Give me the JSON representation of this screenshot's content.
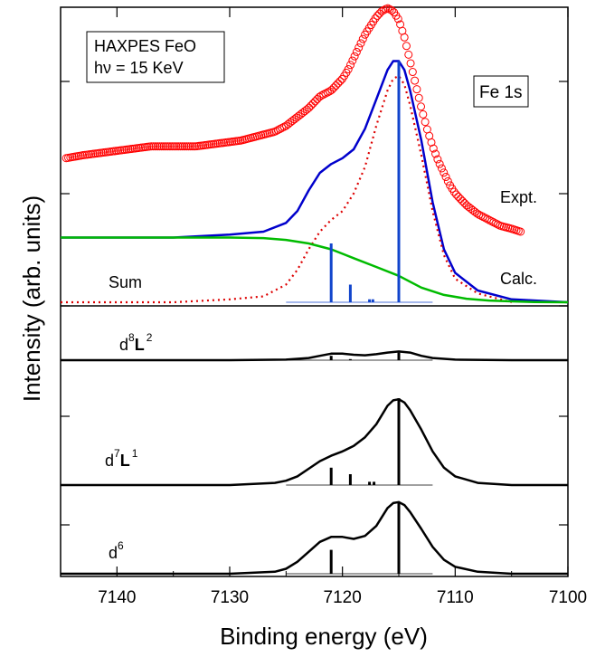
{
  "chart_data": {
    "type": "line",
    "xlabel": "Binding energy (eV)",
    "ylabel": "Intensity (arb. units)",
    "xlim": [
      7145,
      7100
    ],
    "x_reversed": true,
    "x_ticks": [
      7140,
      7130,
      7120,
      7110,
      7100
    ],
    "grid": false,
    "annotations": {
      "box_left": [
        "HAXPES FeO",
        "hν = 15 KeV"
      ],
      "box_right": "Fe 1s",
      "expt": "Expt.",
      "calc": "Calc.",
      "sum": "Sum",
      "d8_main": "d",
      "d8_sup": "8",
      "d8_L": "L",
      "d8_L_sup": "2",
      "d7_main": "d",
      "d7_sup": "7",
      "d7_L": "L",
      "d7_L_sup": "1",
      "d6_main": "d",
      "d6_sup": "6"
    },
    "colors": {
      "expt": "#ff0000",
      "sum_total": "#0000cc",
      "dotted": "#dd0000",
      "background": "#00bb00",
      "sticks_sum": "#1144cc",
      "panels": "#000000"
    },
    "panels": [
      {
        "name": "Sum",
        "yrange": [
          0,
          1.0
        ],
        "series": [
          {
            "name": "Expt.",
            "style": "markers",
            "x": [
              7144.5,
              7143,
              7141,
              7139,
              7137,
              7135,
              7133,
              7131,
              7129,
              7127,
              7126,
              7125,
              7124,
              7123,
              7122,
              7121,
              7120.5,
              7120,
              7119.5,
              7119,
              7118.5,
              7118,
              7117.5,
              7117,
              7116.5,
              7116,
              7115.5,
              7115,
              7114.5,
              7114,
              7113.5,
              7113,
              7112.5,
              7112,
              7111.5,
              7111,
              7110.5,
              7110,
              7109,
              7108,
              7107,
              7106,
              7105,
              7104.2
            ],
            "y": [
              0.49,
              0.5,
              0.51,
              0.52,
              0.53,
              0.53,
              0.53,
              0.54,
              0.55,
              0.57,
              0.58,
              0.6,
              0.63,
              0.66,
              0.7,
              0.72,
              0.74,
              0.76,
              0.79,
              0.83,
              0.87,
              0.91,
              0.94,
              0.97,
              0.99,
              1.0,
              0.99,
              0.96,
              0.9,
              0.82,
              0.74,
              0.66,
              0.59,
              0.53,
              0.48,
              0.44,
              0.4,
              0.37,
              0.33,
              0.3,
              0.28,
              0.26,
              0.25,
              0.24
            ]
          },
          {
            "name": "Sum total",
            "style": "line",
            "x": [
              7145,
              7135,
              7130,
              7127,
              7125,
              7124,
              7123,
              7122,
              7121,
              7120,
              7119,
              7118,
              7117,
              7116,
              7115.5,
              7115,
              7114.5,
              7114,
              7113,
              7112,
              7111,
              7110,
              7108,
              7105,
              7100
            ],
            "y": [
              0.22,
              0.22,
              0.23,
              0.24,
              0.27,
              0.31,
              0.38,
              0.44,
              0.47,
              0.49,
              0.52,
              0.59,
              0.69,
              0.79,
              0.82,
              0.82,
              0.79,
              0.72,
              0.55,
              0.34,
              0.18,
              0.1,
              0.04,
              0.01,
              0.0
            ]
          },
          {
            "name": "dotted",
            "style": "dotted",
            "x": [
              7145,
              7135,
              7130,
              7127,
              7125,
              7124,
              7123,
              7122,
              7121,
              7120,
              7119,
              7118,
              7117,
              7116,
              7115.5,
              7115,
              7114.5,
              7114,
              7113,
              7112,
              7111,
              7110,
              7108,
              7105
            ],
            "y": [
              0.0,
              0.0,
              0.01,
              0.02,
              0.06,
              0.11,
              0.18,
              0.24,
              0.28,
              0.31,
              0.37,
              0.46,
              0.6,
              0.72,
              0.76,
              0.77,
              0.74,
              0.67,
              0.5,
              0.31,
              0.16,
              0.08,
              0.03,
              0.0
            ]
          },
          {
            "name": "background",
            "style": "line",
            "x": [
              7145,
              7135,
              7130,
              7127,
              7125,
              7123,
              7121,
              7119,
              7117,
              7115,
              7113,
              7111,
              7109,
              7107,
              7105,
              7103,
              7100
            ],
            "y": [
              0.22,
              0.22,
              0.22,
              0.218,
              0.212,
              0.2,
              0.18,
              0.15,
              0.12,
              0.09,
              0.05,
              0.025,
              0.012,
              0.006,
              0.003,
              0.001,
              0.0
            ]
          },
          {
            "name": "sticks",
            "style": "sticks",
            "x": [
              7121,
              7119.3,
              7117.6,
              7117.3,
              7115
            ],
            "y": [
              0.2,
              0.06,
              0.01,
              0.01,
              0.82
            ]
          }
        ]
      },
      {
        "name": "d8L2",
        "yrange": [
          0,
          1.0
        ],
        "series": [
          {
            "name": "d8L2",
            "style": "line",
            "x": [
              7145,
              7130,
              7125,
              7123,
              7122,
              7121,
              7120,
              7119,
              7118,
              7117,
              7116,
              7115,
              7114,
              7113,
              7112,
              7110,
              7105,
              7100
            ],
            "y": [
              0.0,
              0.0,
              0.01,
              0.04,
              0.08,
              0.12,
              0.12,
              0.1,
              0.09,
              0.11,
              0.14,
              0.16,
              0.14,
              0.08,
              0.04,
              0.01,
              0.0,
              0.0
            ]
          },
          {
            "name": "sticks",
            "style": "sticks",
            "x": [
              7121,
              7119.3,
              7115
            ],
            "y": [
              0.08,
              0.02,
              0.14
            ]
          }
        ]
      },
      {
        "name": "d7L1",
        "yrange": [
          0,
          1.0
        ],
        "series": [
          {
            "name": "d7L1",
            "style": "line",
            "x": [
              7145,
              7130,
              7126,
              7125,
              7124,
              7123,
              7122,
              7121,
              7120,
              7119,
              7118,
              7117,
              7116,
              7115.5,
              7115,
              7114.5,
              7114,
              7113,
              7112,
              7111,
              7110,
              7108,
              7105,
              7100
            ],
            "y": [
              0.0,
              0.0,
              0.02,
              0.04,
              0.08,
              0.15,
              0.22,
              0.27,
              0.31,
              0.36,
              0.44,
              0.56,
              0.73,
              0.78,
              0.79,
              0.76,
              0.69,
              0.51,
              0.31,
              0.16,
              0.08,
              0.02,
              0.0,
              0.0
            ]
          },
          {
            "name": "sticks",
            "style": "sticks",
            "x": [
              7121,
              7119.3,
              7117.6,
              7117.2,
              7115
            ],
            "y": [
              0.16,
              0.1,
              0.03,
              0.03,
              0.8
            ]
          }
        ]
      },
      {
        "name": "d6",
        "yrange": [
          0,
          1.0
        ],
        "series": [
          {
            "name": "d6",
            "style": "line",
            "x": [
              7145,
              7130,
              7126,
              7125,
              7124,
              7123,
              7122,
              7121,
              7120,
              7119,
              7118,
              7117,
              7116,
              7115.5,
              7115,
              7114.5,
              7114,
              7113,
              7112,
              7111,
              7110,
              7108,
              7105,
              7100
            ],
            "y": [
              0.0,
              0.0,
              0.02,
              0.05,
              0.12,
              0.22,
              0.32,
              0.37,
              0.37,
              0.35,
              0.38,
              0.48,
              0.66,
              0.71,
              0.72,
              0.69,
              0.62,
              0.45,
              0.27,
              0.14,
              0.07,
              0.02,
              0.0,
              0.0
            ]
          },
          {
            "name": "sticks",
            "style": "sticks",
            "x": [
              7121,
              7115
            ],
            "y": [
              0.24,
              0.72
            ]
          }
        ]
      }
    ]
  }
}
